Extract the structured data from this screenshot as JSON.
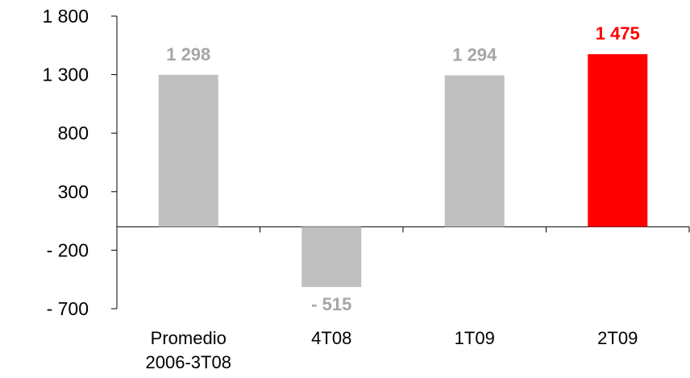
{
  "chart_data": {
    "type": "bar",
    "categories": [
      [
        "Promedio",
        "2006-3T08"
      ],
      [
        "4T08"
      ],
      [
        "1T09"
      ],
      [
        "2T09"
      ]
    ],
    "values": [
      1298,
      -515,
      1294,
      1475
    ],
    "data_labels": [
      "1 298",
      "-  515",
      "1 294",
      "1 475"
    ],
    "bar_colors": [
      "#c0c0c0",
      "#c0c0c0",
      "#c0c0c0",
      "#ff0000"
    ],
    "label_colors": [
      "#a6a6a6",
      "#a6a6a6",
      "#a6a6a6",
      "#ff0000"
    ],
    "ylim": [
      -700,
      1800
    ],
    "yticks": [
      1800,
      1300,
      800,
      300,
      -200,
      -700
    ],
    "ytick_labels": [
      "1 800",
      "1 300",
      "800",
      "300",
      "-  200",
      "-  700"
    ],
    "title": "",
    "xlabel": "",
    "ylabel": "",
    "grid": false,
    "legend": "none"
  }
}
